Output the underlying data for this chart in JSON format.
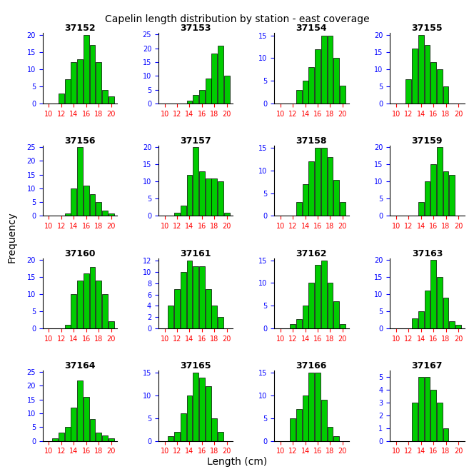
{
  "title": "Capelin length distribution by station - east coverage",
  "xlabel": "Length (cm)",
  "ylabel": "Frequency",
  "bar_color": "#00CC00",
  "bar_edge_color": "#000000",
  "stations": [
    {
      "id": "37152",
      "counts": [
        0,
        0,
        3,
        7,
        12,
        13,
        20,
        17,
        12,
        4,
        2
      ]
    },
    {
      "id": "37153",
      "counts": [
        0,
        0,
        0,
        0,
        1,
        3,
        5,
        9,
        18,
        21,
        10
      ]
    },
    {
      "id": "37154",
      "counts": [
        0,
        0,
        0,
        3,
        5,
        8,
        12,
        15,
        15,
        10,
        4
      ]
    },
    {
      "id": "37155",
      "counts": [
        0,
        0,
        7,
        16,
        20,
        17,
        12,
        10,
        5,
        0,
        0
      ]
    },
    {
      "id": "37156",
      "counts": [
        0,
        0,
        0,
        1,
        10,
        25,
        11,
        8,
        5,
        2,
        1
      ]
    },
    {
      "id": "37157",
      "counts": [
        0,
        0,
        1,
        3,
        12,
        20,
        13,
        11,
        11,
        10,
        1
      ]
    },
    {
      "id": "37158",
      "counts": [
        0,
        0,
        0,
        3,
        7,
        12,
        15,
        15,
        13,
        8,
        3
      ]
    },
    {
      "id": "37159",
      "counts": [
        0,
        0,
        0,
        0,
        4,
        10,
        15,
        20,
        13,
        12,
        0
      ]
    },
    {
      "id": "37160",
      "counts": [
        0,
        0,
        0,
        1,
        10,
        14,
        16,
        18,
        14,
        10,
        2
      ]
    },
    {
      "id": "37161",
      "counts": [
        0,
        4,
        7,
        10,
        12,
        11,
        11,
        7,
        4,
        2,
        0
      ]
    },
    {
      "id": "37162",
      "counts": [
        0,
        0,
        1,
        2,
        5,
        10,
        14,
        15,
        10,
        6,
        1
      ]
    },
    {
      "id": "37163",
      "counts": [
        0,
        0,
        0,
        3,
        5,
        11,
        20,
        15,
        9,
        2,
        1
      ]
    },
    {
      "id": "37164",
      "counts": [
        0,
        1,
        3,
        5,
        12,
        22,
        16,
        8,
        3,
        2,
        1
      ]
    },
    {
      "id": "37165",
      "counts": [
        0,
        1,
        2,
        6,
        10,
        15,
        14,
        12,
        5,
        2,
        0
      ]
    },
    {
      "id": "37166",
      "counts": [
        0,
        0,
        5,
        7,
        10,
        15,
        15,
        9,
        3,
        1,
        0
      ]
    },
    {
      "id": "37167",
      "counts": [
        0,
        0,
        0,
        3,
        5,
        5,
        4,
        3,
        1,
        0,
        0
      ]
    }
  ],
  "bin_centers": [
    10,
    11,
    12,
    13,
    14,
    15,
    16,
    17,
    18,
    19,
    20
  ],
  "xlim": [
    9,
    21
  ],
  "xticks": [
    10,
    12,
    14,
    16,
    18,
    20
  ],
  "nrows": 4,
  "ncols": 4,
  "title_fontsize": 10,
  "tick_color_x": "#FF0000",
  "tick_color_y": "#0000FF",
  "panel_title_fontsize": 9,
  "panel_title_fontweight": "bold"
}
